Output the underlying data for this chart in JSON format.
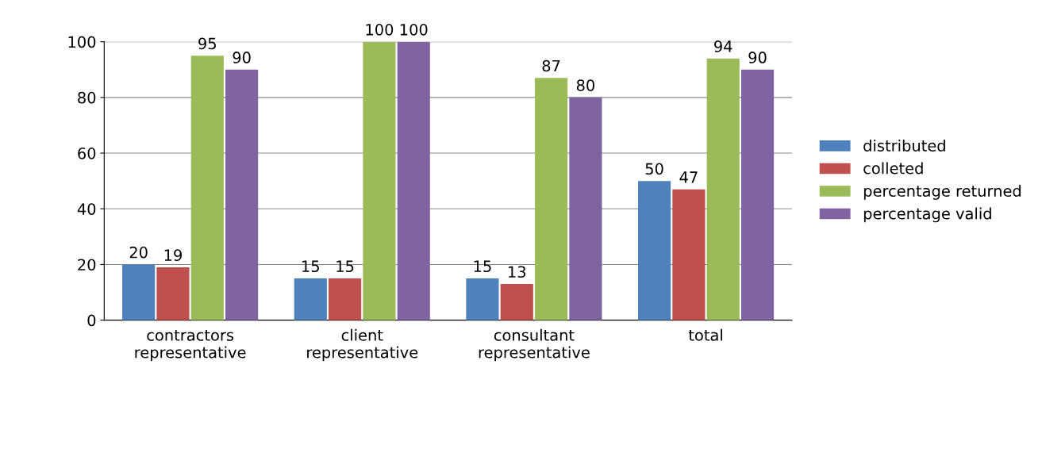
{
  "chart_data": {
    "type": "bar",
    "categories": [
      "contractors\nrepresentative",
      "client\nrepresentative",
      "consultant\nrepresentative",
      "total"
    ],
    "series": [
      {
        "name": "distributed",
        "color": "#4f81bd",
        "values": [
          20,
          15,
          15,
          50
        ]
      },
      {
        "name": "colleted",
        "color": "#c0504d",
        "values": [
          19,
          15,
          13,
          47
        ]
      },
      {
        "name": "percentage returned",
        "color": "#9bbb59",
        "values": [
          95,
          100,
          87,
          94
        ]
      },
      {
        "name": "percentage valid",
        "color": "#8064a2",
        "values": [
          90,
          100,
          80,
          90
        ]
      }
    ],
    "ylim": [
      0,
      100
    ],
    "yticks": [
      0,
      20,
      40,
      60,
      80,
      100
    ],
    "grid": "y",
    "legend": "right",
    "data_labels": true
  }
}
